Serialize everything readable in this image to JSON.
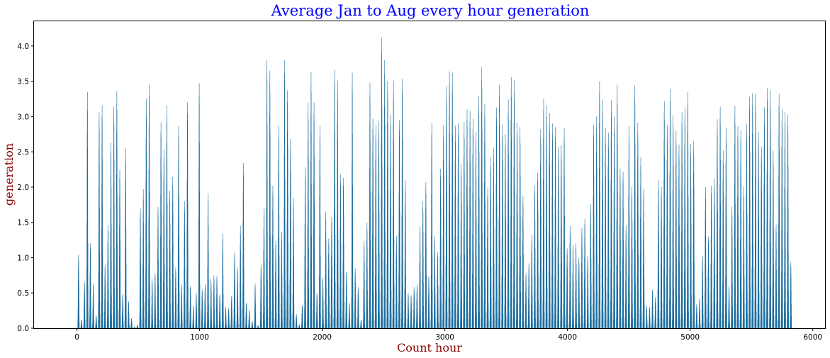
{
  "chart_data": {
    "type": "bar",
    "title": "Average Jan to Aug every hour generation",
    "xlabel": "Count hour",
    "ylabel": "generation",
    "xlim": [
      -350,
      6100
    ],
    "ylim": [
      0,
      4.35
    ],
    "xticks": [
      0,
      1000,
      2000,
      3000,
      4000,
      5000,
      6000
    ],
    "yticks": [
      0.0,
      0.5,
      1.0,
      1.5,
      2.0,
      2.5,
      3.0,
      3.5,
      4.0
    ],
    "xtick_labels": [
      "0",
      "1000",
      "2000",
      "3000",
      "4000",
      "5000",
      "6000"
    ],
    "ytick_labels": [
      "0.0",
      "0.5",
      "1.0",
      "1.5",
      "2.0",
      "2.5",
      "3.0",
      "3.5",
      "4.0"
    ],
    "grid": false,
    "bar_color": "#1f6f9f",
    "title_color": "#0000ff",
    "label_color": "#8b0000",
    "daily_peaks": [
      [
        12,
        1.04
      ],
      [
        36,
        0.12
      ],
      [
        60,
        0.66
      ],
      [
        84,
        3.35
      ],
      [
        108,
        1.2
      ],
      [
        132,
        0.63
      ],
      [
        156,
        0.18
      ],
      [
        180,
        3.06
      ],
      [
        204,
        3.16
      ],
      [
        228,
        0.9
      ],
      [
        252,
        1.46
      ],
      [
        276,
        2.63
      ],
      [
        300,
        3.14
      ],
      [
        324,
        3.36
      ],
      [
        348,
        2.24
      ],
      [
        372,
        0.48
      ],
      [
        396,
        2.55
      ],
      [
        420,
        0.38
      ],
      [
        444,
        0.14
      ],
      [
        468,
        0.02
      ],
      [
        492,
        0.05
      ],
      [
        516,
        1.7
      ],
      [
        540,
        1.97
      ],
      [
        564,
        3.25
      ],
      [
        588,
        3.45
      ],
      [
        612,
        0.7
      ],
      [
        636,
        0.78
      ],
      [
        660,
        1.72
      ],
      [
        684,
        2.92
      ],
      [
        708,
        2.53
      ],
      [
        732,
        3.16
      ],
      [
        756,
        1.95
      ],
      [
        780,
        2.14
      ],
      [
        804,
        0.86
      ],
      [
        828,
        2.87
      ],
      [
        852,
        0.62
      ],
      [
        876,
        1.8
      ],
      [
        900,
        3.2
      ],
      [
        924,
        0.6
      ],
      [
        948,
        0.32
      ],
      [
        972,
        0.5
      ],
      [
        996,
        3.47
      ],
      [
        1020,
        0.55
      ],
      [
        1044,
        0.62
      ],
      [
        1068,
        1.91
      ],
      [
        1092,
        0.7
      ],
      [
        1116,
        0.75
      ],
      [
        1140,
        0.74
      ],
      [
        1164,
        0.48
      ],
      [
        1188,
        1.34
      ],
      [
        1212,
        0.3
      ],
      [
        1236,
        0.28
      ],
      [
        1260,
        0.46
      ],
      [
        1284,
        1.07
      ],
      [
        1308,
        0.86
      ],
      [
        1332,
        1.45
      ],
      [
        1356,
        2.34
      ],
      [
        1380,
        0.36
      ],
      [
        1404,
        0.26
      ],
      [
        1428,
        0.1
      ],
      [
        1452,
        0.63
      ],
      [
        1476,
        0.04
      ],
      [
        1500,
        0.9
      ],
      [
        1524,
        1.7
      ],
      [
        1548,
        3.8
      ],
      [
        1572,
        3.65
      ],
      [
        1596,
        2.02
      ],
      [
        1620,
        1.24
      ],
      [
        1644,
        2.88
      ],
      [
        1668,
        1.36
      ],
      [
        1692,
        3.8
      ],
      [
        1716,
        3.37
      ],
      [
        1740,
        2.68
      ],
      [
        1764,
        1.85
      ],
      [
        1788,
        0.2
      ],
      [
        1812,
        0.05
      ],
      [
        1836,
        0.33
      ],
      [
        1860,
        2.28
      ],
      [
        1884,
        3.2
      ],
      [
        1908,
        3.63
      ],
      [
        1932,
        3.2
      ],
      [
        1956,
        0.5
      ],
      [
        1980,
        2.87
      ],
      [
        2004,
        0.72
      ],
      [
        2028,
        1.65
      ],
      [
        2052,
        1.27
      ],
      [
        2076,
        1.58
      ],
      [
        2100,
        3.66
      ],
      [
        2124,
        3.51
      ],
      [
        2148,
        2.18
      ],
      [
        2172,
        2.13
      ],
      [
        2196,
        0.8
      ],
      [
        2220,
        0.36
      ],
      [
        2244,
        3.62
      ],
      [
        2268,
        0.85
      ],
      [
        2292,
        0.58
      ],
      [
        2316,
        0.12
      ],
      [
        2340,
        1.24
      ],
      [
        2364,
        1.5
      ],
      [
        2388,
        3.48
      ],
      [
        2412,
        2.97
      ],
      [
        2436,
        2.88
      ],
      [
        2460,
        2.93
      ],
      [
        2484,
        4.12
      ],
      [
        2508,
        3.8
      ],
      [
        2532,
        3.5
      ],
      [
        2556,
        3.02
      ],
      [
        2580,
        3.51
      ],
      [
        2604,
        1.31
      ],
      [
        2628,
        2.95
      ],
      [
        2652,
        3.53
      ],
      [
        2676,
        2.1
      ],
      [
        2700,
        0.5
      ],
      [
        2724,
        0.47
      ],
      [
        2748,
        0.58
      ],
      [
        2772,
        0.62
      ],
      [
        2796,
        1.44
      ],
      [
        2820,
        1.8
      ],
      [
        2844,
        2.07
      ],
      [
        2868,
        0.74
      ],
      [
        2892,
        2.91
      ],
      [
        2916,
        1.31
      ],
      [
        2940,
        1.08
      ],
      [
        2964,
        2.26
      ],
      [
        2988,
        2.87
      ],
      [
        3012,
        3.43
      ],
      [
        3036,
        3.64
      ],
      [
        3060,
        3.62
      ],
      [
        3084,
        2.87
      ],
      [
        3108,
        2.9
      ],
      [
        3132,
        2.33
      ],
      [
        3156,
        2.92
      ],
      [
        3180,
        3.1
      ],
      [
        3204,
        3.08
      ],
      [
        3228,
        2.97
      ],
      [
        3252,
        2.78
      ],
      [
        3276,
        3.29
      ],
      [
        3300,
        3.7
      ],
      [
        3324,
        3.18
      ],
      [
        3348,
        1.98
      ],
      [
        3372,
        2.42
      ],
      [
        3396,
        2.56
      ],
      [
        3420,
        3.13
      ],
      [
        3444,
        3.45
      ],
      [
        3468,
        2.89
      ],
      [
        3492,
        2.75
      ],
      [
        3516,
        3.24
      ],
      [
        3540,
        3.56
      ],
      [
        3564,
        3.52
      ],
      [
        3588,
        2.91
      ],
      [
        3612,
        2.85
      ],
      [
        3636,
        1.88
      ],
      [
        3660,
        0.78
      ],
      [
        3684,
        0.92
      ],
      [
        3708,
        1.32
      ],
      [
        3732,
        2.02
      ],
      [
        3756,
        2.2
      ],
      [
        3780,
        2.82
      ],
      [
        3804,
        3.25
      ],
      [
        3828,
        3.16
      ],
      [
        3852,
        3.05
      ],
      [
        3876,
        2.9
      ],
      [
        3900,
        2.85
      ],
      [
        3924,
        2.57
      ],
      [
        3948,
        2.59
      ],
      [
        3972,
        2.84
      ],
      [
        3996,
        1.13
      ],
      [
        4020,
        1.45
      ],
      [
        4044,
        1.18
      ],
      [
        4068,
        1.2
      ],
      [
        4092,
        1.0
      ],
      [
        4116,
        1.42
      ],
      [
        4140,
        1.55
      ],
      [
        4164,
        1.02
      ],
      [
        4188,
        1.76
      ],
      [
        4212,
        2.88
      ],
      [
        4236,
        3.0
      ],
      [
        4260,
        3.5
      ],
      [
        4284,
        3.24
      ],
      [
        4308,
        2.83
      ],
      [
        4332,
        2.77
      ],
      [
        4356,
        3.23
      ],
      [
        4380,
        3.0
      ],
      [
        4404,
        3.45
      ],
      [
        4428,
        2.26
      ],
      [
        4452,
        2.22
      ],
      [
        4476,
        1.46
      ],
      [
        4500,
        2.87
      ],
      [
        4524,
        2.0
      ],
      [
        4548,
        3.44
      ],
      [
        4572,
        2.91
      ],
      [
        4596,
        2.42
      ],
      [
        4620,
        1.98
      ],
      [
        4644,
        0.32
      ],
      [
        4668,
        0.3
      ],
      [
        4692,
        0.55
      ],
      [
        4716,
        0.44
      ],
      [
        4740,
        2.1
      ],
      [
        4764,
        2.0
      ],
      [
        4788,
        3.22
      ],
      [
        4812,
        2.88
      ],
      [
        4836,
        3.39
      ],
      [
        4860,
        3.02
      ],
      [
        4884,
        2.8
      ],
      [
        4908,
        2.6
      ],
      [
        4932,
        3.06
      ],
      [
        4956,
        3.13
      ],
      [
        4980,
        3.35
      ],
      [
        5004,
        2.61
      ],
      [
        5028,
        2.65
      ],
      [
        5052,
        0.34
      ],
      [
        5076,
        0.42
      ],
      [
        5100,
        1.03
      ],
      [
        5124,
        2.0
      ],
      [
        5148,
        1.3
      ],
      [
        5172,
        2.02
      ],
      [
        5196,
        2.12
      ],
      [
        5220,
        2.96
      ],
      [
        5244,
        3.14
      ],
      [
        5268,
        2.52
      ],
      [
        5292,
        2.84
      ],
      [
        5316,
        0.6
      ],
      [
        5340,
        1.72
      ],
      [
        5364,
        3.15
      ],
      [
        5388,
        2.86
      ],
      [
        5412,
        2.81
      ],
      [
        5436,
        2.01
      ],
      [
        5460,
        2.9
      ],
      [
        5484,
        3.28
      ],
      [
        5508,
        3.33
      ],
      [
        5532,
        3.32
      ],
      [
        5556,
        2.78
      ],
      [
        5580,
        2.57
      ],
      [
        5604,
        3.13
      ],
      [
        5628,
        3.4
      ],
      [
        5652,
        3.37
      ],
      [
        5676,
        2.52
      ],
      [
        5700,
        1.47
      ],
      [
        5724,
        3.32
      ],
      [
        5748,
        3.1
      ],
      [
        5772,
        3.07
      ],
      [
        5796,
        3.03
      ],
      [
        5820,
        0.94
      ]
    ]
  }
}
